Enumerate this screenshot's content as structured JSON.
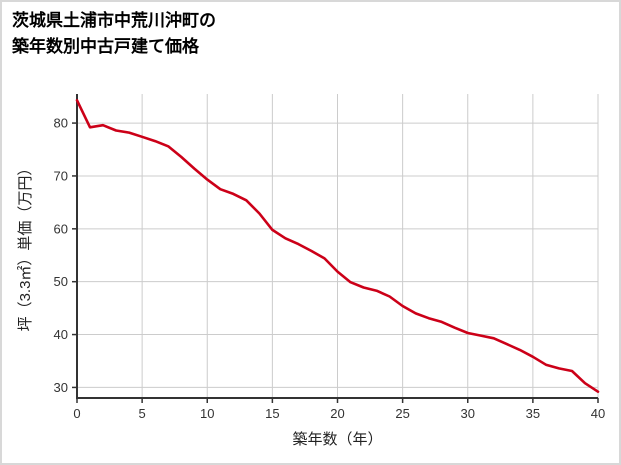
{
  "title": {
    "line1": "茨城県土浦市中荒川沖町の",
    "line2": "築年数別中古戸建て価格"
  },
  "chart_data": {
    "type": "line",
    "title": "茨城県土浦市中荒川沖町の築年数別中古戸建て価格",
    "xlabel": "築年数（年）",
    "ylabel": "坪（3.3㎡）単価（万円）",
    "x": [
      0,
      1,
      2,
      3,
      4,
      5,
      6,
      7,
      8,
      9,
      10,
      11,
      12,
      13,
      14,
      15,
      16,
      17,
      18,
      19,
      20,
      21,
      22,
      23,
      24,
      25,
      26,
      27,
      28,
      29,
      30,
      31,
      32,
      33,
      34,
      35,
      36,
      37,
      38,
      39,
      40
    ],
    "values": [
      84.3,
      79.2,
      79.6,
      78.6,
      78.2,
      77.4,
      76.6,
      75.6,
      73.6,
      71.4,
      69.3,
      67.5,
      66.6,
      65.4,
      62.9,
      59.8,
      58.2,
      57.1,
      55.8,
      54.4,
      51.9,
      49.9,
      48.9,
      48.3,
      47.2,
      45.4,
      44.0,
      43.1,
      42.4,
      41.3,
      40.3,
      39.8,
      39.3,
      38.2,
      37.1,
      35.8,
      34.3,
      33.6,
      33.1,
      30.8,
      29.2
    ],
    "x_ticks": [
      0,
      5,
      10,
      15,
      20,
      25,
      30,
      35,
      40
    ],
    "y_ticks": [
      30,
      40,
      50,
      60,
      70,
      80
    ],
    "xlim": [
      0,
      40
    ],
    "ylim": [
      28,
      85.5
    ],
    "grid": true,
    "legend": "none",
    "line_color": "#cc0018",
    "grid_color": "#cccccc",
    "axis_color": "#333333",
    "tick_label_color": "#333333",
    "axis_label_color": "#222222"
  }
}
